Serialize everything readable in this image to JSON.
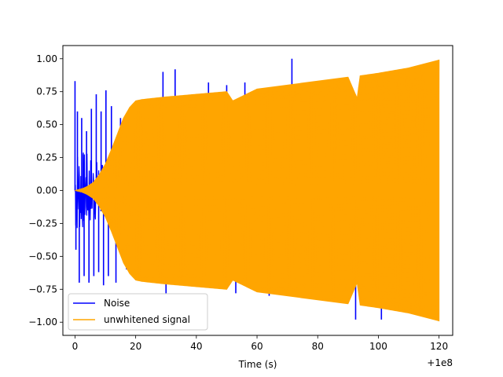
{
  "chart_data": {
    "type": "line",
    "title": "",
    "xlabel": "Time (s)",
    "ylabel": "",
    "x_offset_text": "+1e8",
    "xlim": [
      -4,
      124.5
    ],
    "ylim": [
      -1.1,
      1.1
    ],
    "xticks": [
      0,
      20,
      40,
      60,
      80,
      100,
      120
    ],
    "xtick_labels": [
      "0",
      "20",
      "40",
      "60",
      "80",
      "100",
      "120"
    ],
    "yticks": [
      -1.0,
      -0.75,
      -0.5,
      -0.25,
      0.0,
      0.25,
      0.5,
      0.75,
      1.0
    ],
    "ytick_labels": [
      "−1.00",
      "−0.75",
      "−0.50",
      "−0.25",
      "0.00",
      "0.25",
      "0.50",
      "0.75",
      "1.00"
    ],
    "grid": false,
    "legend": {
      "position": "lower-left"
    },
    "colors": {
      "noise": "#0000ff",
      "signal": "#ffa500"
    },
    "series": [
      {
        "name": "Noise",
        "color": "#0000ff",
        "description_values": "peak spike amplitudes",
        "x": [
          0.0,
          0.3,
          0.8,
          1.4,
          2.2,
          3.0,
          3.8,
          4.6,
          5.4,
          6.2,
          7.0,
          7.8,
          8.6,
          9.4,
          10.2,
          11.0,
          12.0,
          13.5,
          15.0,
          17.0,
          22.0,
          29.0,
          30.0,
          33.0,
          44.0,
          50.0,
          53.0,
          56.0,
          64.0,
          71.5,
          92.5,
          101.0
        ],
        "y": [
          0.83,
          -0.45,
          0.6,
          -0.7,
          0.55,
          -0.65,
          0.45,
          -0.7,
          0.62,
          -0.65,
          0.73,
          -0.62,
          0.6,
          -0.72,
          0.76,
          -0.65,
          0.64,
          -0.7,
          0.55,
          -0.6,
          0.45,
          0.9,
          -0.78,
          0.92,
          0.82,
          0.8,
          -0.78,
          0.82,
          -0.8,
          1.0,
          -0.98,
          -0.98
        ]
      },
      {
        "name": "unwhitened signal",
        "color": "#ffa500",
        "description_values": "upper envelope amplitude",
        "x": [
          0,
          2,
          4,
          6,
          8,
          10,
          12,
          14,
          16,
          18,
          20,
          22,
          30,
          40,
          50,
          52,
          60,
          70,
          80,
          90,
          93,
          94,
          100,
          110,
          120
        ],
        "y": [
          0.0,
          0.01,
          0.03,
          0.06,
          0.12,
          0.2,
          0.31,
          0.43,
          0.55,
          0.63,
          0.68,
          0.69,
          0.71,
          0.73,
          0.75,
          0.68,
          0.77,
          0.8,
          0.83,
          0.86,
          0.7,
          0.87,
          0.89,
          0.93,
          0.99
        ]
      }
    ]
  }
}
